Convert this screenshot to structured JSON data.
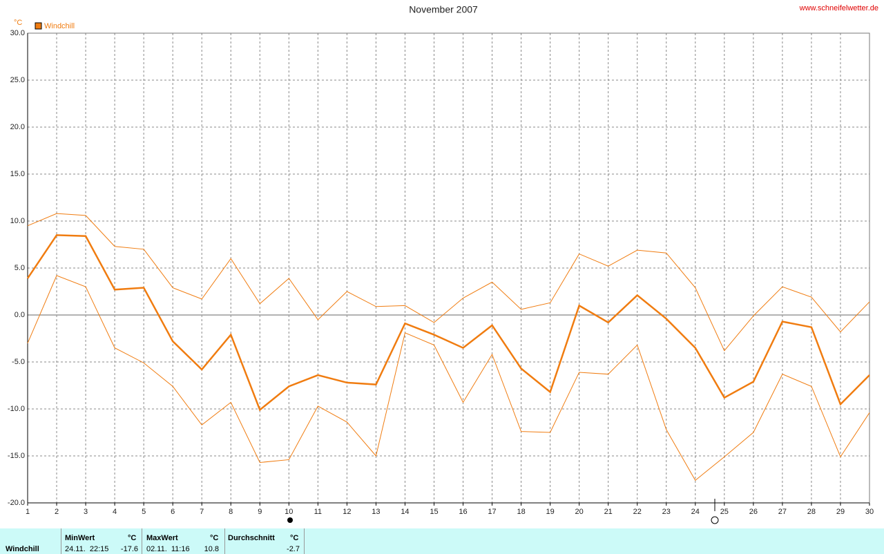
{
  "chart_data": {
    "type": "line",
    "title": "November 2007",
    "source": "www.schneifelwetter.de",
    "y_unit": "°C",
    "x": [
      1,
      2,
      3,
      4,
      5,
      6,
      7,
      8,
      9,
      10,
      11,
      12,
      13,
      14,
      15,
      16,
      17,
      18,
      19,
      20,
      21,
      22,
      23,
      24,
      25,
      26,
      27,
      28,
      29,
      30
    ],
    "xlim": [
      1,
      30
    ],
    "xticks": [
      1,
      2,
      3,
      4,
      5,
      6,
      7,
      8,
      9,
      10,
      11,
      12,
      13,
      14,
      15,
      16,
      17,
      18,
      19,
      20,
      21,
      22,
      23,
      24,
      25,
      26,
      27,
      28,
      29,
      30
    ],
    "ylim": [
      -20,
      30
    ],
    "yticks": [
      {
        "value": -20,
        "label": "-20.0"
      },
      {
        "value": -15,
        "label": "-15.0"
      },
      {
        "value": -10,
        "label": "-10.0"
      },
      {
        "value": -5,
        "label": "-5.0"
      },
      {
        "value": 0,
        "label": "0.0"
      },
      {
        "value": 5,
        "label": "5.0"
      },
      {
        "value": 10,
        "label": "10.0"
      },
      {
        "value": 15,
        "label": "15.0"
      },
      {
        "value": 20,
        "label": "20.0"
      },
      {
        "value": 25,
        "label": "25.0"
      },
      {
        "value": 30,
        "label": "30.0"
      }
    ],
    "grid": true,
    "series": [
      {
        "name": "Windchill",
        "color": "#f07c10",
        "values": [
          3.9,
          8.5,
          8.4,
          2.7,
          2.9,
          -2.8,
          -5.8,
          -2.1,
          -10.1,
          -7.6,
          -6.4,
          -7.2,
          -7.4,
          -0.9,
          -2.1,
          -3.5,
          -1.1,
          -5.7,
          -8.2,
          1.0,
          -0.8,
          2.1,
          -0.4,
          -3.5,
          -8.8,
          -7.1,
          -0.7,
          -1.3,
          -9.5,
          -6.4
        ]
      },
      {
        "color": "#f07c10",
        "values": [
          9.5,
          10.8,
          10.6,
          7.3,
          7.0,
          2.9,
          1.7,
          6.0,
          1.2,
          3.9,
          -0.5,
          2.5,
          0.9,
          1.0,
          -0.8,
          1.8,
          3.5,
          0.6,
          1.3,
          6.5,
          5.2,
          6.9,
          6.6,
          2.9,
          -3.8,
          -0.1,
          3.0,
          1.9,
          -1.8,
          1.4
        ]
      },
      {
        "color": "#f07c10",
        "values": [
          -3.0,
          4.2,
          3.0,
          -3.5,
          -5.1,
          -7.6,
          -11.7,
          -9.3,
          -15.7,
          -15.4,
          -9.7,
          -11.4,
          -15.0,
          -1.9,
          -3.2,
          -9.3,
          -4.2,
          -12.4,
          -12.5,
          -6.1,
          -6.3,
          -3.2,
          -12.2,
          -17.6,
          -15.1,
          -12.5,
          -6.3,
          -7.6,
          -15.1,
          -10.4
        ]
      }
    ]
  },
  "summary": {
    "label": "Windchill",
    "min_head": "MinWert",
    "min_unit": "°C",
    "min_time": "24.11.  22:15",
    "min_value": "-17.6",
    "max_head": "MaxWert",
    "max_unit": "°C",
    "max_time": "02.11.  11:16",
    "max_value": "10.8",
    "avg_head": "Durchschnitt",
    "avg_unit": "°C",
    "avg_value": "-2.7"
  }
}
